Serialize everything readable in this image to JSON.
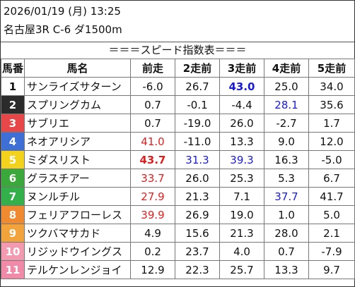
{
  "header": {
    "date": "2026/01/19 (月) 13:25",
    "race": "名古屋3R C-6 ダ1500m",
    "title": "＝＝＝スピード指数表＝＝＝"
  },
  "columns": [
    "馬番",
    "馬名",
    "前走",
    "2走前",
    "3走前",
    "4走前",
    "5走前"
  ],
  "rows": [
    {
      "num": "1",
      "name": "サンライズサターン",
      "bg": "#ffffff",
      "fg": "#111111",
      "vals": [
        {
          "v": "-6.0",
          "c": ""
        },
        {
          "v": "26.7",
          "c": ""
        },
        {
          "v": "43.0",
          "c": "blue bold"
        },
        {
          "v": "25.0",
          "c": ""
        },
        {
          "v": "34.0",
          "c": ""
        }
      ]
    },
    {
      "num": "2",
      "name": "スプリングカム",
      "bg": "#2b2b2b",
      "fg": "#ffffff",
      "vals": [
        {
          "v": "0.7",
          "c": ""
        },
        {
          "v": "-0.1",
          "c": ""
        },
        {
          "v": "-4.4",
          "c": ""
        },
        {
          "v": "28.1",
          "c": "blue"
        },
        {
          "v": "35.6",
          "c": ""
        }
      ]
    },
    {
      "num": "3",
      "name": "サブリエ",
      "bg": "#e8474a",
      "fg": "#ffffff",
      "vals": [
        {
          "v": "0.7",
          "c": ""
        },
        {
          "v": "-19.0",
          "c": ""
        },
        {
          "v": "26.0",
          "c": ""
        },
        {
          "v": "-2.7",
          "c": ""
        },
        {
          "v": "1.7",
          "c": ""
        }
      ]
    },
    {
      "num": "4",
      "name": "ネオアリシア",
      "bg": "#3d6fd6",
      "fg": "#ffffff",
      "vals": [
        {
          "v": "41.0",
          "c": "red"
        },
        {
          "v": "-11.0",
          "c": ""
        },
        {
          "v": "13.3",
          "c": ""
        },
        {
          "v": "9.0",
          "c": ""
        },
        {
          "v": "12.0",
          "c": ""
        }
      ]
    },
    {
      "num": "5",
      "name": "ミダスリスト",
      "bg": "#f2d21c",
      "fg": "#ffffff",
      "vals": [
        {
          "v": "43.7",
          "c": "red bold"
        },
        {
          "v": "31.3",
          "c": "blue"
        },
        {
          "v": "39.3",
          "c": "blue"
        },
        {
          "v": "16.3",
          "c": ""
        },
        {
          "v": "-5.0",
          "c": ""
        }
      ]
    },
    {
      "num": "6",
      "name": "グラスチアー",
      "bg": "#3aa83a",
      "fg": "#ffffff",
      "vals": [
        {
          "v": "33.7",
          "c": "red"
        },
        {
          "v": "26.0",
          "c": ""
        },
        {
          "v": "25.3",
          "c": ""
        },
        {
          "v": "5.3",
          "c": ""
        },
        {
          "v": "6.7",
          "c": ""
        }
      ]
    },
    {
      "num": "7",
      "name": "ヌンルチル",
      "bg": "#34b04a",
      "fg": "#ffffff",
      "vals": [
        {
          "v": "27.9",
          "c": "red"
        },
        {
          "v": "21.3",
          "c": ""
        },
        {
          "v": "7.1",
          "c": ""
        },
        {
          "v": "37.7",
          "c": "blue"
        },
        {
          "v": "41.7",
          "c": ""
        }
      ]
    },
    {
      "num": "8",
      "name": "フェリアフローレス",
      "bg": "#f08a30",
      "fg": "#ffffff",
      "vals": [
        {
          "v": "39.9",
          "c": "red"
        },
        {
          "v": "26.9",
          "c": ""
        },
        {
          "v": "19.0",
          "c": ""
        },
        {
          "v": "1.0",
          "c": ""
        },
        {
          "v": "5.0",
          "c": ""
        }
      ]
    },
    {
      "num": "9",
      "name": "ツクバマサカド",
      "bg": "#f3a33c",
      "fg": "#ffffff",
      "vals": [
        {
          "v": "4.9",
          "c": ""
        },
        {
          "v": "15.6",
          "c": ""
        },
        {
          "v": "21.3",
          "c": ""
        },
        {
          "v": "28.0",
          "c": ""
        },
        {
          "v": "2.1",
          "c": ""
        }
      ]
    },
    {
      "num": "10",
      "name": "リジッドウイングス",
      "bg": "#f49ab0",
      "fg": "#ffffff",
      "vals": [
        {
          "v": "0.2",
          "c": ""
        },
        {
          "v": "23.7",
          "c": ""
        },
        {
          "v": "4.0",
          "c": ""
        },
        {
          "v": "0.7",
          "c": ""
        },
        {
          "v": "-7.9",
          "c": ""
        }
      ]
    },
    {
      "num": "11",
      "name": "テルケンレンジョイ",
      "bg": "#f08aa8",
      "fg": "#ffffff",
      "vals": [
        {
          "v": "12.9",
          "c": ""
        },
        {
          "v": "22.3",
          "c": ""
        },
        {
          "v": "25.7",
          "c": ""
        },
        {
          "v": "13.3",
          "c": ""
        },
        {
          "v": "9.7",
          "c": ""
        }
      ]
    }
  ]
}
